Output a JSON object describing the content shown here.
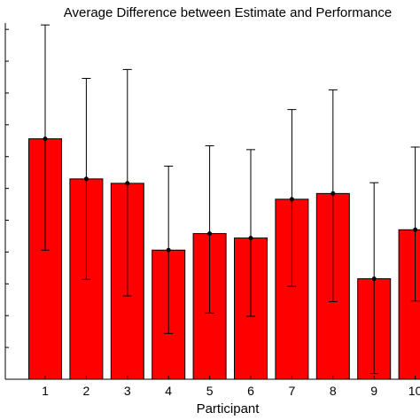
{
  "chart_data": {
    "type": "bar",
    "title": "Average Difference between Estimate and Performance",
    "xlabel": "Participant",
    "ylabel": "",
    "categories": [
      "1",
      "2",
      "3",
      "4",
      "5",
      "6",
      "7",
      "8",
      "9",
      "10"
    ],
    "values": [
      3.78,
      3.15,
      3.08,
      2.03,
      2.29,
      2.22,
      2.83,
      2.92,
      1.58,
      2.35
    ],
    "error_low": [
      2.03,
      1.57,
      1.31,
      0.72,
      1.04,
      0.99,
      1.46,
      1.22,
      0.09,
      1.23
    ],
    "error_high": [
      5.57,
      4.73,
      4.87,
      3.35,
      3.67,
      3.61,
      4.24,
      4.55,
      3.09,
      3.65
    ],
    "ylim": [
      0,
      5.6
    ],
    "bar_color": "#ff0000",
    "grid": false,
    "legend": "none"
  }
}
